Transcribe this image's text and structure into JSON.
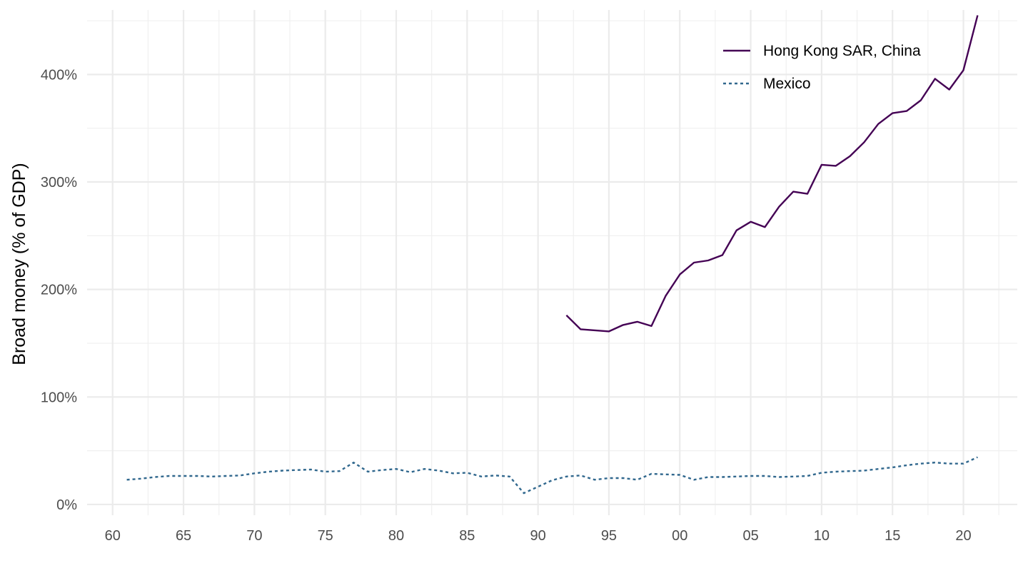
{
  "chart_data": {
    "type": "line",
    "title": "",
    "xlabel": "",
    "ylabel": "Broad money (% of GDP)",
    "x_range": [
      1958.2,
      2023.8
    ],
    "ylim": [
      -10,
      460
    ],
    "x_ticks": [
      {
        "value": 1960,
        "label": "60"
      },
      {
        "value": 1965,
        "label": "65"
      },
      {
        "value": 1970,
        "label": "70"
      },
      {
        "value": 1975,
        "label": "75"
      },
      {
        "value": 1980,
        "label": "80"
      },
      {
        "value": 1985,
        "label": "85"
      },
      {
        "value": 1990,
        "label": "90"
      },
      {
        "value": 1995,
        "label": "95"
      },
      {
        "value": 2000,
        "label": "00"
      },
      {
        "value": 2005,
        "label": "05"
      },
      {
        "value": 2010,
        "label": "10"
      },
      {
        "value": 2015,
        "label": "15"
      },
      {
        "value": 2020,
        "label": "20"
      }
    ],
    "x_minor_ticks": [
      1962.5,
      1967.5,
      1972.5,
      1977.5,
      1982.5,
      1987.5,
      1992.5,
      1997.5,
      2002.5,
      2007.5,
      2012.5,
      2017.5,
      2022.5
    ],
    "y_ticks": [
      {
        "value": 0,
        "label": "0%"
      },
      {
        "value": 100,
        "label": "100%"
      },
      {
        "value": 200,
        "label": "200%"
      },
      {
        "value": 300,
        "label": "300%"
      },
      {
        "value": 400,
        "label": "400%"
      }
    ],
    "y_minor_ticks": [
      50,
      150,
      250,
      350,
      450
    ],
    "grid": true,
    "legend": {
      "position": "top-right"
    },
    "series": [
      {
        "name": "Hong Kong SAR, China",
        "color": "#440154",
        "dash": "solid",
        "x": [
          1992,
          1993,
          1994,
          1995,
          1996,
          1997,
          1998,
          1999,
          2000,
          2001,
          2002,
          2003,
          2004,
          2005,
          2006,
          2007,
          2008,
          2009,
          2010,
          2011,
          2012,
          2013,
          2014,
          2015,
          2016,
          2017,
          2018,
          2019,
          2020,
          2021
        ],
        "values": [
          176,
          163,
          162,
          161,
          167,
          170,
          166,
          194,
          214,
          225,
          227,
          232,
          255,
          263,
          258,
          277,
          291,
          289,
          316,
          315,
          324,
          337,
          354,
          364,
          366,
          376,
          396,
          386,
          404,
          455
        ]
      },
      {
        "name": "Mexico",
        "color": "#31688e",
        "dash": "dotted",
        "x": [
          1961,
          1962,
          1963,
          1964,
          1965,
          1966,
          1967,
          1968,
          1969,
          1970,
          1971,
          1972,
          1973,
          1974,
          1975,
          1976,
          1977,
          1978,
          1979,
          1980,
          1981,
          1982,
          1983,
          1984,
          1985,
          1986,
          1987,
          1988,
          1989,
          1990,
          1991,
          1992,
          1993,
          1994,
          1995,
          1996,
          1997,
          1998,
          1999,
          2000,
          2001,
          2002,
          2003,
          2004,
          2005,
          2006,
          2007,
          2008,
          2009,
          2010,
          2011,
          2012,
          2013,
          2014,
          2015,
          2016,
          2017,
          2018,
          2019,
          2020,
          2021
        ],
        "values": [
          23,
          24,
          25.5,
          26.5,
          26.5,
          26.5,
          26,
          26.5,
          27,
          29,
          30.5,
          31.5,
          32,
          32.5,
          30.5,
          31,
          39,
          30.5,
          32,
          33,
          30,
          33,
          31.5,
          29,
          29.5,
          26,
          27,
          26,
          10.5,
          16.5,
          22.5,
          26,
          27,
          23,
          24.5,
          24.5,
          23,
          28.5,
          28,
          27.5,
          23,
          25.5,
          25.5,
          26,
          26.5,
          26.5,
          25.5,
          26,
          26.5,
          29.5,
          30.5,
          31,
          31.5,
          33,
          34.5,
          36.5,
          38,
          39,
          38,
          38,
          44
        ]
      }
    ]
  }
}
